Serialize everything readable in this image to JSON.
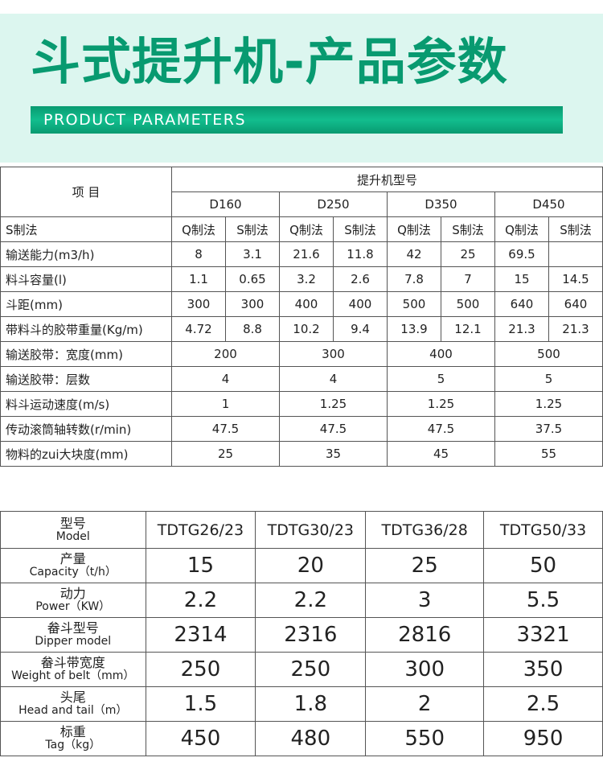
{
  "header": {
    "title": "斗式提升机-产品参数",
    "subtitle": "PRODUCT PARAMETERS",
    "colors": {
      "green": "#089a70",
      "bg": "#dcf6ef"
    }
  },
  "table1": {
    "item_label": "项 目",
    "group_label": "提升机型号",
    "models": [
      "D160",
      "D250",
      "D350",
      "D450"
    ],
    "method_row": {
      "label": "S制法",
      "cells": [
        "Q制法",
        "S制法",
        "Q制法",
        "S制法",
        "Q制法",
        "S制法",
        "Q制法",
        "S制法"
      ]
    },
    "rows8": [
      {
        "label": "输送能力(m3/h)",
        "cells": [
          "8",
          "3.1",
          "21.6",
          "11.8",
          "42",
          "25",
          "69.5",
          ""
        ]
      },
      {
        "label": "料斗容量(l)",
        "cells": [
          "1.1",
          "0.65",
          "3.2",
          "2.6",
          "7.8",
          "7",
          "15",
          "14.5"
        ]
      },
      {
        "label": "斗距(mm)",
        "cells": [
          "300",
          "300",
          "400",
          "400",
          "500",
          "500",
          "640",
          "640"
        ]
      },
      {
        "label": "带料斗的胶带重量(Kg/m)",
        "cells": [
          "4.72",
          "8.8",
          "10.2",
          "9.4",
          "13.9",
          "12.1",
          "21.3",
          "21.3"
        ]
      }
    ],
    "rows4": [
      {
        "label": "输送胶带：宽度(mm)",
        "cells": [
          "200",
          "300",
          "400",
          "500"
        ]
      },
      {
        "label": "输送胶带：层数",
        "cells": [
          "4",
          "4",
          "5",
          "5"
        ]
      },
      {
        "label": "料斗运动速度(m/s)",
        "cells": [
          "1",
          "1.25",
          "1.25",
          "1.25"
        ]
      },
      {
        "label": "传动滚筒轴转数(r/min)",
        "cells": [
          "47.5",
          "47.5",
          "47.5",
          "37.5"
        ]
      },
      {
        "label": "物料的zui大块度(mm)",
        "cells": [
          "25",
          "35",
          "45",
          "55"
        ]
      }
    ]
  },
  "table2": {
    "model_cn": "型号",
    "model_en": "Model",
    "models": [
      "TDTG26/23",
      "TDTG30/23",
      "TDTG36/28",
      "TDTG50/33"
    ],
    "rows": [
      {
        "cn": "产量",
        "en": "Capacity（t/h）",
        "cells": [
          "15",
          "20",
          "25",
          "50"
        ]
      },
      {
        "cn": "动力",
        "en": "Power（KW）",
        "cells": [
          "2.2",
          "2.2",
          "3",
          "5.5"
        ]
      },
      {
        "cn": "畚斗型号",
        "en": "Dipper model",
        "cells": [
          "2314",
          "2316",
          "2816",
          "3321"
        ]
      },
      {
        "cn": "畚斗带宽度",
        "en": "Weight of belt（mm）",
        "cells": [
          "250",
          "250",
          "300",
          "350"
        ]
      },
      {
        "cn": "头尾",
        "en": "Head and tail（m）",
        "cells": [
          "1.5",
          "1.8",
          "2",
          "2.5"
        ]
      },
      {
        "cn": "标重",
        "en": "Tag（kg）",
        "cells": [
          "450",
          "480",
          "550",
          "950"
        ]
      }
    ]
  }
}
